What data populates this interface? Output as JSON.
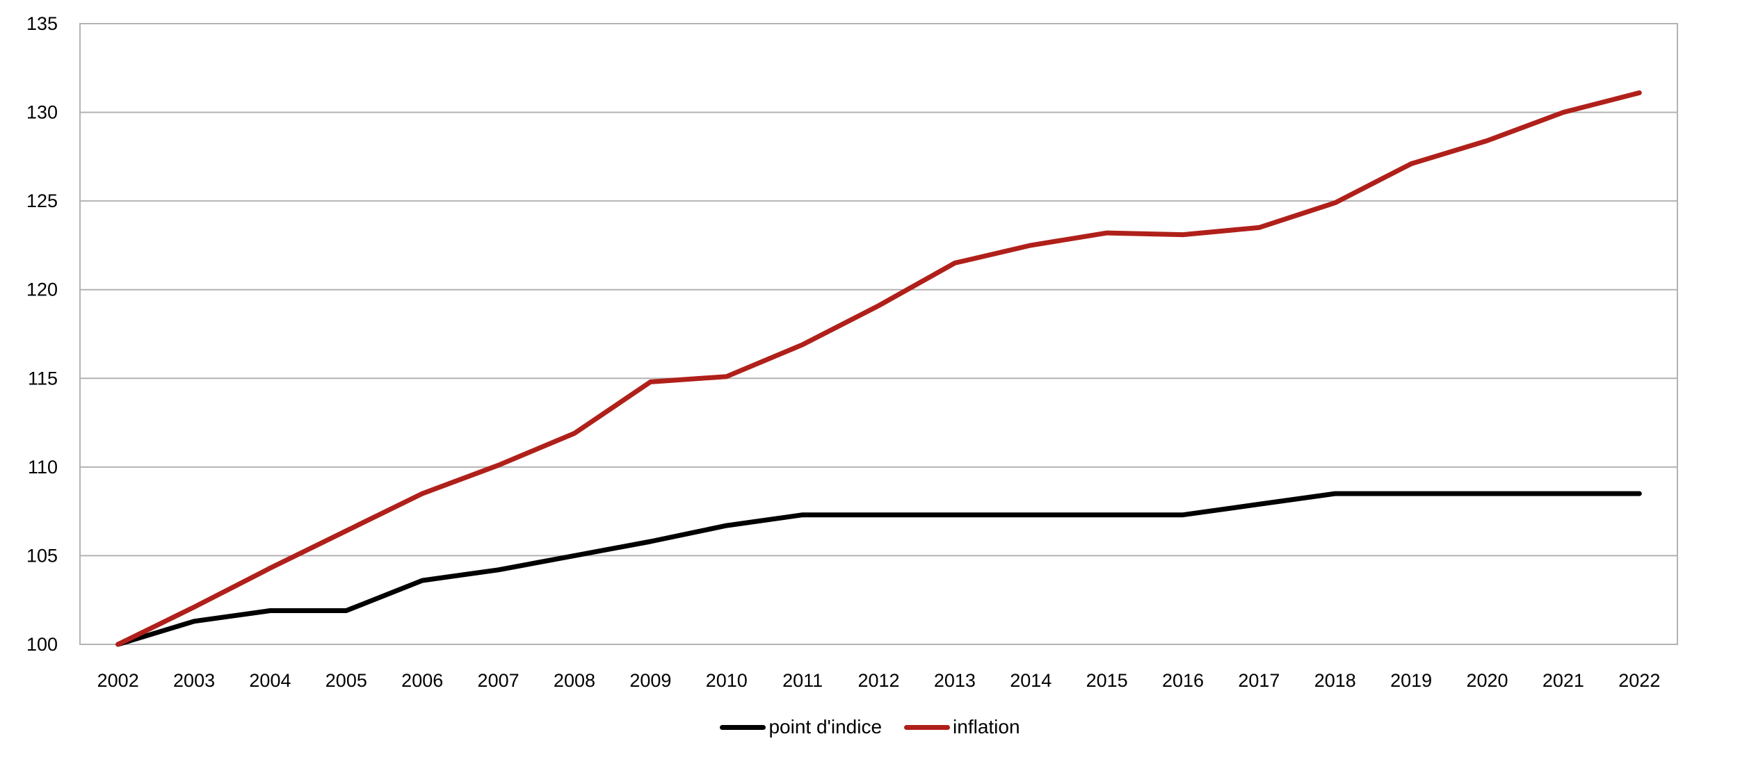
{
  "chart_data": {
    "type": "line",
    "title": "",
    "xlabel": "",
    "ylabel": "",
    "categories": [
      "2002",
      "2003",
      "2004",
      "2005",
      "2006",
      "2007",
      "2008",
      "2009",
      "2010",
      "2011",
      "2012",
      "2013",
      "2014",
      "2015",
      "2016",
      "2017",
      "2018",
      "2019",
      "2020",
      "2021",
      "2022"
    ],
    "ylim": [
      100,
      135
    ],
    "yticks": [
      100,
      105,
      110,
      115,
      120,
      125,
      130,
      135
    ],
    "grid": true,
    "legend_position": "bottom-center",
    "series": [
      {
        "name": "point d'indice",
        "color": "#000000",
        "values": [
          100,
          101.3,
          101.9,
          101.9,
          103.6,
          104.2,
          105.0,
          105.8,
          106.7,
          107.3,
          107.3,
          107.3,
          107.3,
          107.3,
          107.3,
          107.9,
          108.5,
          108.5,
          108.5,
          108.5,
          108.5
        ]
      },
      {
        "name": "inflation",
        "color": "#B0201A",
        "values": [
          100,
          102.1,
          104.3,
          106.4,
          108.5,
          110.1,
          111.9,
          114.8,
          115.1,
          116.9,
          119.1,
          121.5,
          122.5,
          123.2,
          123.1,
          123.5,
          124.9,
          127.1,
          128.4,
          130.0,
          131.1
        ]
      }
    ]
  },
  "colors": {
    "grid": "#B3B3B3",
    "axis_text": "#000000"
  }
}
